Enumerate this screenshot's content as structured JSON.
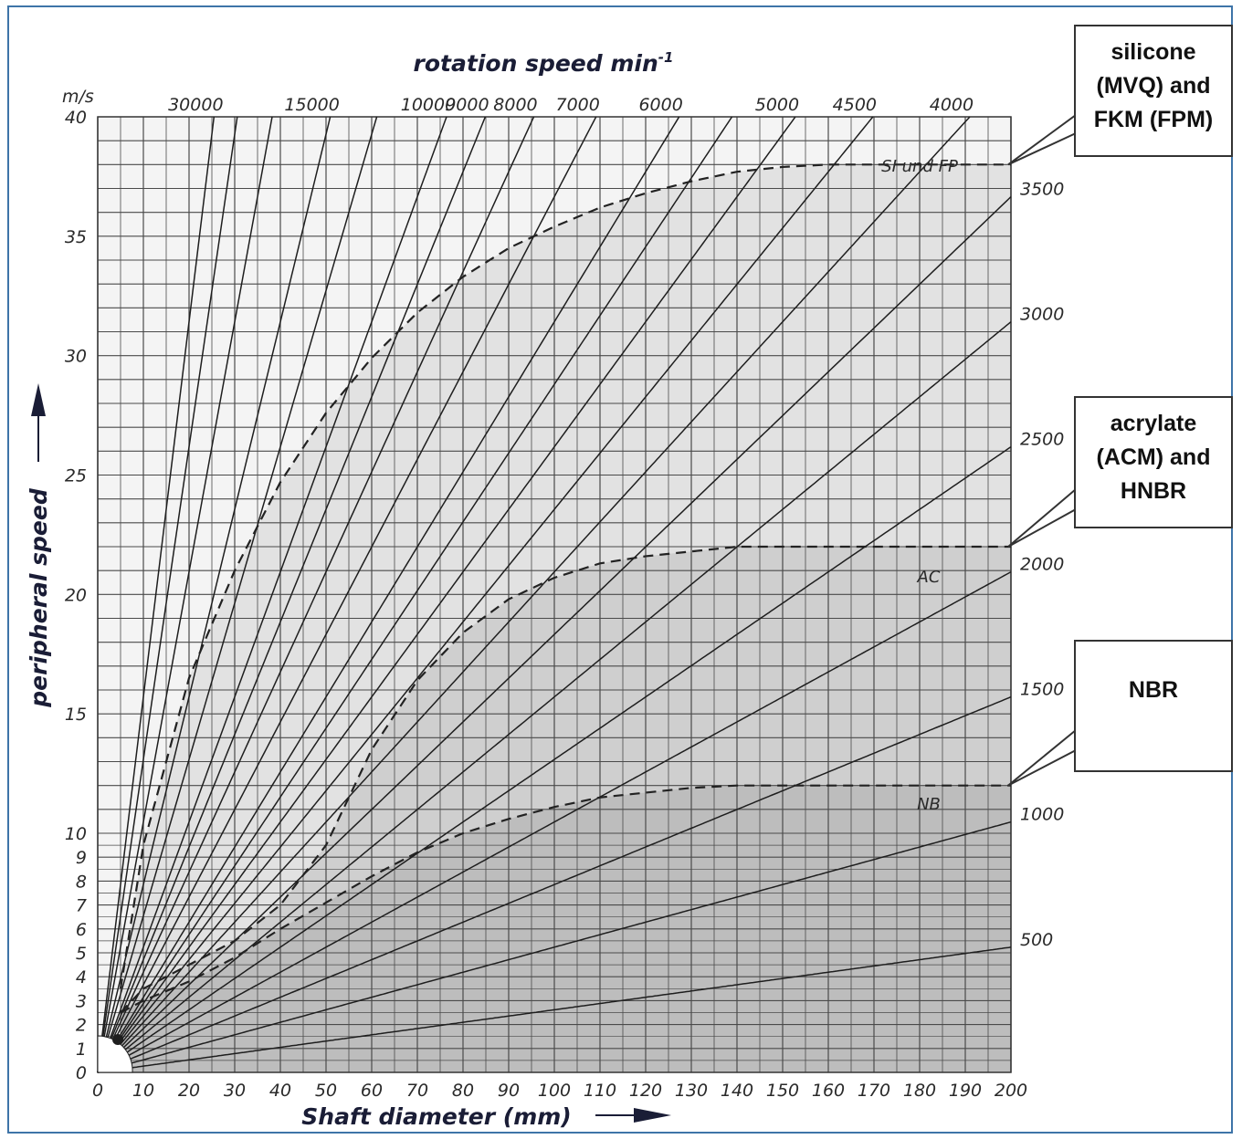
{
  "chart_data": {
    "type": "line",
    "top_title": "rotation speed min",
    "top_title_sup": "-1",
    "xlabel": "Shaft diameter (mm)",
    "ylabel": "peripheral speed",
    "y_unit": "m/s",
    "xlim": [
      0,
      200
    ],
    "ylim": [
      0,
      40
    ],
    "x_ticks": [
      "0",
      "10",
      "20",
      "30",
      "40",
      "50",
      "60",
      "70",
      "80",
      "90",
      "100",
      "110",
      "120",
      "130",
      "140",
      "150",
      "160",
      "170",
      "180",
      "190",
      "200"
    ],
    "y_ticks": [
      "0",
      "1",
      "2",
      "3",
      "4",
      "5",
      "6",
      "7",
      "8",
      "9",
      "10",
      "15",
      "20",
      "25",
      "30",
      "35",
      "40"
    ],
    "grid": true,
    "rpm_lines": [
      30000,
      25000,
      20000,
      15000,
      12500,
      10000,
      9000,
      8000,
      7000,
      6000,
      5500,
      5000,
      4500,
      4000,
      3500,
      3000,
      2500,
      2000,
      1500,
      1000,
      500
    ],
    "top_rpm_labels": [
      "30000",
      "15000",
      "10000",
      "9000",
      "8000",
      "7000",
      "6000",
      "5000",
      "4500",
      "4000"
    ],
    "right_rpm_labels": [
      "3500",
      "3000",
      "2500",
      "2000",
      "1500",
      "1000",
      "500"
    ],
    "limit_curves": [
      {
        "name": "SI und FP",
        "x": [
          5,
          10,
          20,
          30,
          40,
          50,
          60,
          70,
          80,
          90,
          100,
          110,
          120,
          130,
          140,
          150,
          160,
          170,
          180,
          190,
          200
        ],
        "y": [
          3.5,
          9.5,
          16.5,
          21,
          24.7,
          27.6,
          29.9,
          31.8,
          33.3,
          34.5,
          35.4,
          36.2,
          36.8,
          37.3,
          37.7,
          37.9,
          38.0,
          38.0,
          38.0,
          38.0,
          38.0
        ]
      },
      {
        "name": "AC",
        "x": [
          5,
          10,
          20,
          30,
          40,
          50,
          60,
          70,
          80,
          90,
          100,
          110,
          120,
          130,
          140,
          150,
          160,
          170,
          180,
          190,
          200
        ],
        "y": [
          2.5,
          3.5,
          4.5,
          5.5,
          7,
          9.5,
          13.5,
          16.4,
          18.4,
          19.8,
          20.7,
          21.3,
          21.6,
          21.8,
          22.0,
          22.0,
          22.0,
          22.0,
          22.0,
          22.0,
          22.0
        ]
      },
      {
        "name": "NB",
        "x": [
          5,
          10,
          20,
          30,
          40,
          50,
          60,
          70,
          80,
          90,
          100,
          110,
          120,
          130,
          140,
          150,
          160,
          170,
          180,
          190,
          200
        ],
        "y": [
          2.5,
          3.0,
          3.8,
          4.8,
          6.0,
          7.1,
          8.2,
          9.2,
          10.0,
          10.6,
          11.1,
          11.5,
          11.7,
          11.9,
          12.0,
          12.0,
          12.0,
          12.0,
          12.0,
          12.0,
          12.0
        ]
      }
    ],
    "zone_labels": [
      "SI und FP",
      "AC",
      "NB"
    ]
  },
  "callouts": {
    "silicone": "silicone (MVQ) and FKM (FPM)",
    "acrylate": "acrylate (ACM) and HNBR",
    "nbr": "NBR"
  },
  "colors": {
    "zone_nb": "#bdbdbd",
    "zone_ac": "#cfcfcf",
    "zone_si": "#e2e2e2",
    "background": "#f4f4f4",
    "grid": "#4a4a4a",
    "title": "#1a1d36",
    "frame": "#3e74a8"
  }
}
